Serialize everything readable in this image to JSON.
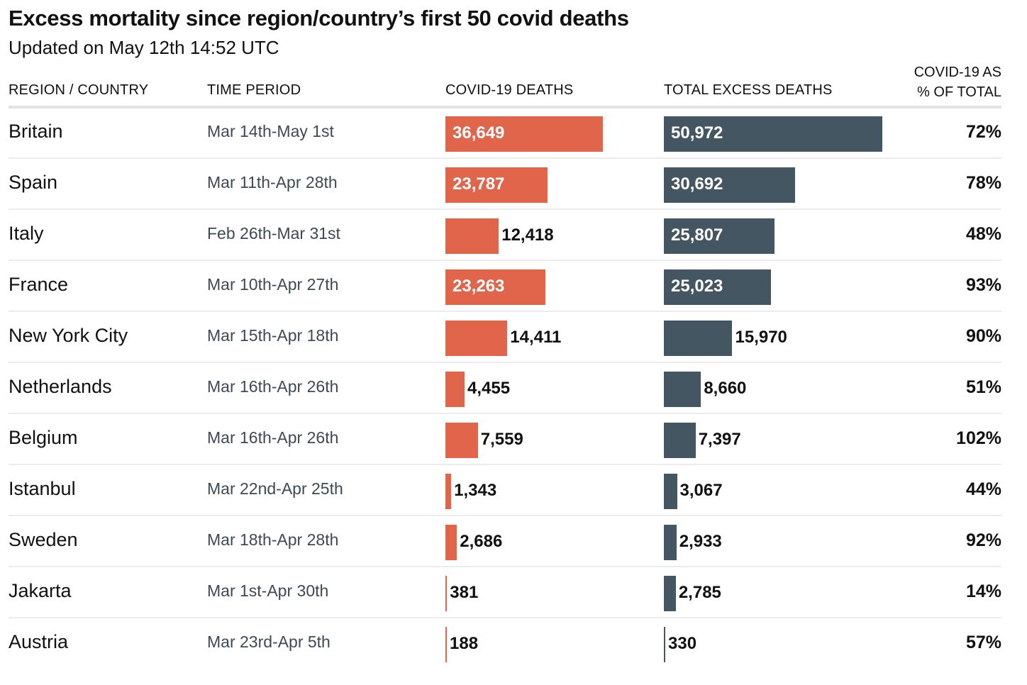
{
  "title": "Excess mortality since region/country’s first 50 covid deaths",
  "subtitle": "Updated on May 12th 14:52 UTC",
  "headers": {
    "region": "REGION / COUNTRY",
    "period": "TIME PERIOD",
    "covid": "COVID-19 DEATHS",
    "excess": "TOTAL EXCESS DEATHS",
    "pct_line1": "COVID-19 AS",
    "pct_line2": "% OF TOTAL"
  },
  "colors": {
    "covid_bar": "#e0654a",
    "excess_bar": "#435661"
  },
  "chart_data": {
    "type": "table",
    "columns": [
      "REGION / COUNTRY",
      "TIME PERIOD",
      "COVID-19 DEATHS",
      "TOTAL EXCESS DEATHS",
      "COVID-19 AS % OF TOTAL"
    ],
    "rows": [
      {
        "country": "Britain",
        "period": "Mar 14th-May 1st",
        "covid": 36649,
        "covid_label": "36,649",
        "excess": 50972,
        "excess_label": "50,972",
        "pct": "72%"
      },
      {
        "country": "Spain",
        "period": "Mar 11th-Apr 28th",
        "covid": 23787,
        "covid_label": "23,787",
        "excess": 30692,
        "excess_label": "30,692",
        "pct": "78%"
      },
      {
        "country": "Italy",
        "period": "Feb 26th-Mar 31st",
        "covid": 12418,
        "covid_label": "12,418",
        "excess": 25807,
        "excess_label": "25,807",
        "pct": "48%"
      },
      {
        "country": "France",
        "period": "Mar 10th-Apr 27th",
        "covid": 23263,
        "covid_label": "23,263",
        "excess": 25023,
        "excess_label": "25,023",
        "pct": "93%"
      },
      {
        "country": "New York City",
        "period": "Mar 15th-Apr 18th",
        "covid": 14411,
        "covid_label": "14,411",
        "excess": 15970,
        "excess_label": "15,970",
        "pct": "90%"
      },
      {
        "country": "Netherlands",
        "period": "Mar 16th-Apr 26th",
        "covid": 4455,
        "covid_label": "4,455",
        "excess": 8660,
        "excess_label": "8,660",
        "pct": "51%"
      },
      {
        "country": "Belgium",
        "period": "Mar 16th-Apr 26th",
        "covid": 7559,
        "covid_label": "7,559",
        "excess": 7397,
        "excess_label": "7,397",
        "pct": "102%"
      },
      {
        "country": "Istanbul",
        "period": "Mar 22nd-Apr 25th",
        "covid": 1343,
        "covid_label": "1,343",
        "excess": 3067,
        "excess_label": "3,067",
        "pct": "44%"
      },
      {
        "country": "Sweden",
        "period": "Mar 18th-Apr 28th",
        "covid": 2686,
        "covid_label": "2,686",
        "excess": 2933,
        "excess_label": "2,933",
        "pct": "92%"
      },
      {
        "country": "Jakarta",
        "period": "Mar 1st-Apr 30th",
        "covid": 381,
        "covid_label": "381",
        "excess": 2785,
        "excess_label": "2,785",
        "pct": "14%"
      },
      {
        "country": "Austria",
        "period": "Mar 23rd-Apr 5th",
        "covid": 188,
        "covid_label": "188",
        "excess": 330,
        "excess_label": "330",
        "pct": "57%"
      }
    ]
  }
}
